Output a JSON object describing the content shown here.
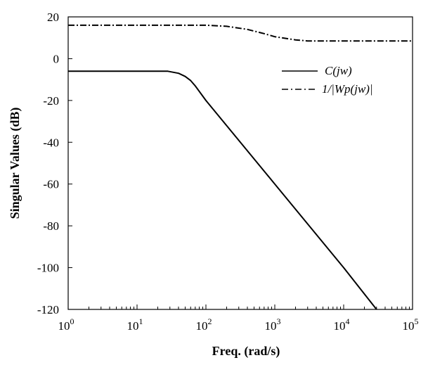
{
  "chart_data": {
    "type": "line",
    "title": "",
    "xlabel": "Freq. (rad/s)",
    "ylabel": "Singular Values (dB)",
    "x_scale": "log",
    "xlim": [
      1,
      100000
    ],
    "ylim": [
      -120,
      20
    ],
    "x_ticks": [
      {
        "value": 1,
        "base": "10",
        "exp": "0"
      },
      {
        "value": 10,
        "base": "10",
        "exp": "1"
      },
      {
        "value": 100,
        "base": "10",
        "exp": "2"
      },
      {
        "value": 1000,
        "base": "10",
        "exp": "3"
      },
      {
        "value": 10000,
        "base": "10",
        "exp": "4"
      },
      {
        "value": 100000,
        "base": "10",
        "exp": "5"
      }
    ],
    "y_ticks": [
      20,
      0,
      -20,
      -40,
      -60,
      -80,
      -100,
      -120
    ],
    "y_tick_labels": [
      "20",
      "0",
      "-20",
      "-40",
      "-60",
      "-80",
      "-100",
      "-120"
    ],
    "grid": false,
    "legend_position": "top-right",
    "series": [
      {
        "name": "C(jw)",
        "style": "solid",
        "color": "#000000",
        "x": [
          1,
          10,
          28,
          40,
          50,
          60,
          70,
          100,
          1000,
          10000,
          30000
        ],
        "y": [
          -6,
          -6,
          -6,
          -7,
          -8.5,
          -10.5,
          -13,
          -20,
          -60,
          -100,
          -120
        ]
      },
      {
        "name": "1/|Wp(jw)|",
        "style": "dashdot",
        "color": "#000000",
        "x": [
          1,
          10,
          100,
          200,
          400,
          700,
          1000,
          2000,
          3000,
          10000,
          100000
        ],
        "y": [
          16,
          16,
          16,
          15.5,
          14,
          12,
          10.5,
          9,
          8.5,
          8.5,
          8.5
        ]
      }
    ]
  }
}
